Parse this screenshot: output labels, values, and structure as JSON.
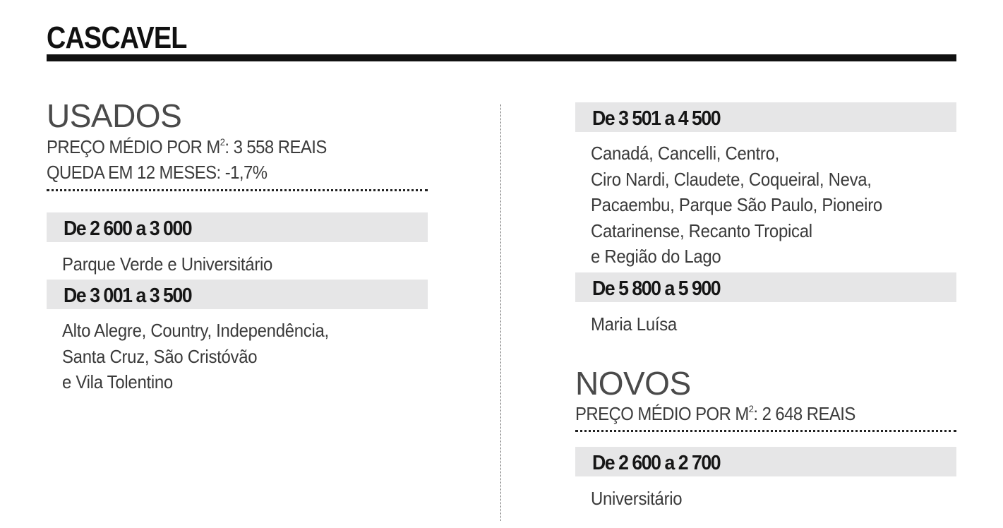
{
  "title": "CASCAVEL",
  "usados": {
    "heading": "USADOS",
    "price_prefix": "PREÇO MÉDIO POR M",
    "price_sup": "2",
    "price_suffix": ": 3 558 REAIS",
    "change": "QUEDA EM 12 MESES: -1,7%",
    "ranges": [
      {
        "label": "De 2 600 a 3 000",
        "lines": [
          "Parque Verde e Universitário"
        ]
      },
      {
        "label": "De 3 001 a 3 500",
        "lines": [
          "Alto Alegre, Country, Independência,",
          "Santa Cruz, São Cristóvão",
          "e Vila Tolentino"
        ]
      },
      {
        "label": "De 3 501 a 4 500",
        "lines": [
          "Canadá, Cancelli, Centro,",
          "Ciro Nardi, Claudete, Coqueiral, Neva,",
          "Pacaembu, Parque São Paulo, Pioneiro",
          "Catarinense, Recanto Tropical",
          "e Região do Lago"
        ]
      },
      {
        "label": "De 5 800 a 5 900",
        "lines": [
          "Maria Luísa"
        ]
      }
    ]
  },
  "novos": {
    "heading": "NOVOS",
    "price_prefix": "PREÇO MÉDIO POR M",
    "price_sup": "2",
    "price_suffix": ": 2 648 REAIS",
    "ranges": [
      {
        "label": "De 2 600 a 2 700",
        "lines": [
          "Universitário"
        ]
      }
    ]
  }
}
